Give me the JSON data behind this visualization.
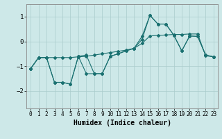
{
  "xlabel": "Humidex (Indice chaleur)",
  "bg_color": "#cde8e8",
  "grid_color": "#aacccc",
  "line_color": "#1a7070",
  "xlim": [
    -0.5,
    23.5
  ],
  "ylim": [
    -2.7,
    1.5
  ],
  "yticks": [
    -2,
    -1,
    0,
    1
  ],
  "xticks": [
    0,
    1,
    2,
    3,
    4,
    5,
    6,
    7,
    8,
    9,
    10,
    11,
    12,
    13,
    14,
    15,
    16,
    17,
    18,
    19,
    20,
    21,
    22,
    23
  ],
  "series1_x": [
    0,
    1,
    2,
    3,
    4,
    5,
    6,
    7,
    8,
    9,
    10,
    11,
    12,
    13,
    14,
    15,
    16,
    17,
    18,
    19,
    20,
    21,
    22,
    23
  ],
  "series1_y": [
    -1.1,
    -0.65,
    -0.65,
    -0.65,
    -0.65,
    -0.65,
    -0.62,
    -0.6,
    -0.55,
    -0.5,
    -0.45,
    -0.4,
    -0.35,
    -0.28,
    -0.08,
    0.22,
    0.24,
    0.26,
    0.28,
    0.28,
    0.3,
    0.3,
    -0.58,
    -0.62
  ],
  "series2_x": [
    0,
    1,
    2,
    3,
    4,
    5,
    6,
    7,
    8,
    9,
    10,
    11,
    12,
    13,
    14,
    15,
    16,
    17,
    18,
    19,
    20,
    21,
    22,
    23
  ],
  "series2_y": [
    -1.1,
    -0.65,
    -0.65,
    -1.65,
    -1.65,
    -1.72,
    -0.6,
    -0.55,
    -1.3,
    -1.3,
    -0.6,
    -0.5,
    -0.38,
    -0.28,
    0.2,
    1.05,
    0.7,
    0.7,
    0.25,
    -0.38,
    0.22,
    0.2,
    -0.55,
    -0.62
  ],
  "series3_x": [
    0,
    1,
    2,
    3,
    4,
    5,
    6,
    7,
    8,
    9,
    10,
    11,
    12,
    13,
    14,
    15,
    16,
    17,
    18,
    19,
    20,
    21,
    22,
    23
  ],
  "series3_y": [
    -1.1,
    -0.65,
    -0.65,
    -1.65,
    -1.65,
    -1.72,
    -0.6,
    -1.3,
    -1.3,
    -1.3,
    -0.6,
    -0.5,
    -0.38,
    -0.28,
    0.08,
    1.05,
    0.7,
    0.7,
    0.25,
    -0.38,
    0.22,
    0.2,
    -0.55,
    -0.62
  ],
  "font_size": 7,
  "tick_fontsize": 5.5,
  "ytick_fontsize": 6.5
}
